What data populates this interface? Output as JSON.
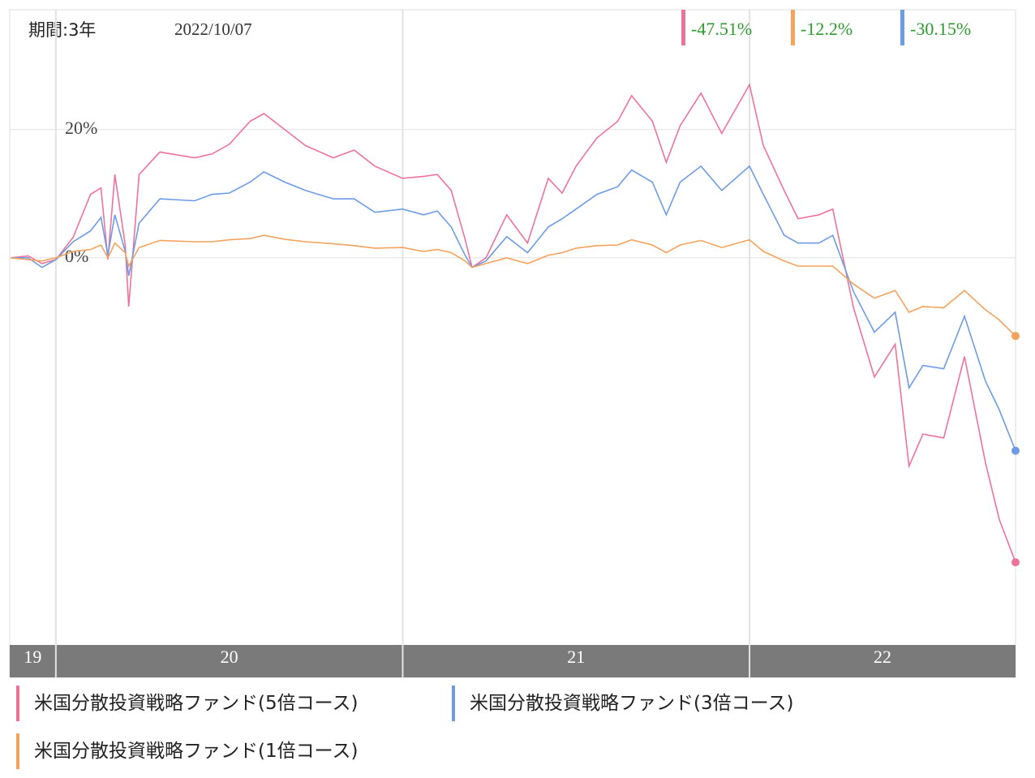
{
  "chart_data": {
    "type": "line",
    "period_label": "期間:3年",
    "date": "2022/10/07",
    "x": [
      19.87,
      19.92,
      19.96,
      20.0,
      20.05,
      20.1,
      20.13,
      20.15,
      20.17,
      20.2,
      20.21,
      20.24,
      20.3,
      20.4,
      20.45,
      20.5,
      20.56,
      20.6,
      20.66,
      20.72,
      20.8,
      20.86,
      20.92,
      21.0,
      21.06,
      21.1,
      21.14,
      21.18,
      21.2,
      21.24,
      21.3,
      21.36,
      21.42,
      21.46,
      21.5,
      21.56,
      21.62,
      21.66,
      21.72,
      21.76,
      21.8,
      21.86,
      21.92,
      22.0,
      22.04,
      22.1,
      22.14,
      22.2,
      22.24,
      22.3,
      22.36,
      22.42,
      22.46,
      22.5,
      22.56,
      22.62,
      22.68,
      22.72,
      22.767
    ],
    "xlim": [
      19.867,
      22.767
    ],
    "xticks": [
      20,
      21,
      22
    ],
    "periods": [
      "19",
      "20",
      "21",
      "22"
    ],
    "ylim": [
      -60.4,
      38.7
    ],
    "yticks": [
      {
        "value": 0,
        "label": "0%"
      },
      {
        "value": 20,
        "label": "20%"
      }
    ],
    "grid": true,
    "series": [
      {
        "name": "米国分散投資戦略ファンド(5倍コース)",
        "color": "#ee7399",
        "total_return": "-47.51%",
        "values": [
          0,
          0.3,
          -0.9,
          -0.3,
          3.2,
          9.9,
          10.9,
          -0.3,
          13.0,
          2.0,
          -7.6,
          13.0,
          16.5,
          15.6,
          16.2,
          17.7,
          21.3,
          22.5,
          20.0,
          17.5,
          15.6,
          16.8,
          14.3,
          12.4,
          12.7,
          13.0,
          10.5,
          2.9,
          -1.5,
          0,
          6.7,
          2.3,
          12.4,
          10.1,
          14.3,
          18.7,
          21.3,
          25.3,
          21.3,
          14.9,
          20.6,
          25.7,
          19.4,
          27.0,
          17.5,
          10.5,
          6.1,
          6.7,
          7.6,
          -7.8,
          -18.6,
          -13.5,
          -32.5,
          -27.5,
          -28.1,
          -15.4,
          -31.9,
          -40.8,
          -47.5
        ]
      },
      {
        "name": "米国分散投資戦略ファンド(3倍コース)",
        "color": "#6d9be6",
        "total_return": "-30.15%",
        "values": [
          0,
          0,
          -1.5,
          -0.3,
          2.5,
          4.2,
          6.3,
          0.4,
          6.7,
          1.0,
          -2.8,
          5.4,
          9.2,
          8.9,
          9.9,
          10.1,
          11.8,
          13.4,
          11.8,
          10.5,
          9.2,
          9.2,
          7.1,
          7.6,
          6.7,
          7.3,
          4.8,
          0.4,
          -1.5,
          -0.5,
          3.3,
          0.8,
          4.8,
          6.1,
          7.6,
          9.9,
          11.1,
          13.7,
          11.8,
          6.7,
          11.8,
          14.3,
          10.5,
          14.3,
          9.9,
          3.5,
          2.3,
          2.3,
          3.5,
          -5.3,
          -11.6,
          -8.5,
          -20.3,
          -16.8,
          -17.3,
          -9.1,
          -19.2,
          -23.7,
          -30.1
        ]
      },
      {
        "name": "米国分散投資戦略ファンド(1倍コース)",
        "color": "#f4a25c",
        "total_return": "-12.2%",
        "values": [
          0,
          -0.3,
          -0.5,
          0,
          1.0,
          1.3,
          2.0,
          0,
          2.3,
          0.8,
          -1.3,
          1.6,
          2.7,
          2.5,
          2.5,
          2.8,
          3.0,
          3.5,
          2.9,
          2.5,
          2.2,
          1.9,
          1.5,
          1.6,
          1.0,
          1.3,
          0.8,
          -0.5,
          -1.5,
          -0.9,
          0,
          -0.9,
          0.4,
          0.8,
          1.5,
          1.9,
          2.0,
          2.8,
          2.0,
          0.8,
          2.0,
          2.7,
          1.6,
          2.8,
          1.0,
          -0.5,
          -1.3,
          -1.3,
          -1.3,
          -4.1,
          -6.3,
          -5.1,
          -8.5,
          -7.6,
          -7.8,
          -5.1,
          -8.1,
          -9.7,
          -12.2
        ]
      }
    ],
    "header_order": [
      0,
      2,
      1
    ]
  }
}
